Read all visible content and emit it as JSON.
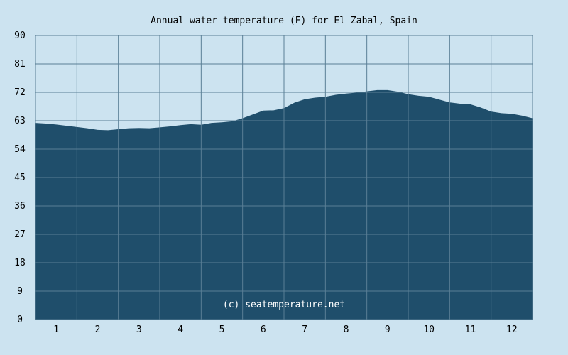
{
  "chart_data": {
    "type": "area",
    "title": "Annual water temperature (F) for El Zabal, Spain",
    "watermark": "(c) seatemperature.net",
    "xlabel": "",
    "ylabel": "",
    "x_tick_labels": [
      "1",
      "2",
      "3",
      "4",
      "5",
      "6",
      "7",
      "8",
      "9",
      "10",
      "11",
      "12"
    ],
    "y_tick_labels": [
      "90",
      "81",
      "72",
      "63",
      "54",
      "45",
      "36",
      "27",
      "18",
      "9",
      "0"
    ],
    "ylim": [
      0,
      90
    ],
    "xlim": [
      0,
      12
    ],
    "grid": true,
    "fill_color": "#1f4e6b",
    "background_color": "#cce3f0",
    "series": [
      {
        "x": [
          0,
          0.25,
          0.5,
          0.75,
          1.0,
          1.25,
          1.5,
          1.75,
          2.0,
          2.25,
          2.5,
          2.75,
          3.0,
          3.25,
          3.5,
          3.75,
          4.0,
          4.25,
          4.5,
          4.75,
          5.0,
          5.25,
          5.5,
          5.75,
          6.0,
          6.25,
          6.5,
          6.75,
          7.0,
          7.25,
          7.5,
          7.75,
          8.0,
          8.25,
          8.5,
          8.75,
          9.0,
          9.25,
          9.5,
          9.75,
          10.0,
          10.25,
          10.5,
          10.75,
          11.0,
          11.25,
          11.5,
          11.75,
          12.0
        ],
        "values": [
          62.3,
          62.1,
          61.8,
          61.4,
          61.0,
          60.6,
          60.1,
          60.0,
          60.3,
          60.6,
          60.7,
          60.6,
          60.9,
          61.2,
          61.6,
          61.9,
          61.7,
          62.3,
          62.5,
          62.8,
          63.8,
          65.0,
          66.2,
          66.3,
          67.0,
          68.7,
          69.8,
          70.3,
          70.6,
          71.2,
          71.6,
          71.9,
          72.3,
          72.7,
          72.7,
          72.2,
          71.4,
          70.9,
          70.6,
          69.7,
          68.8,
          68.4,
          68.2,
          67.2,
          65.9,
          65.4,
          65.2,
          64.6,
          63.8
        ]
      }
    ]
  }
}
